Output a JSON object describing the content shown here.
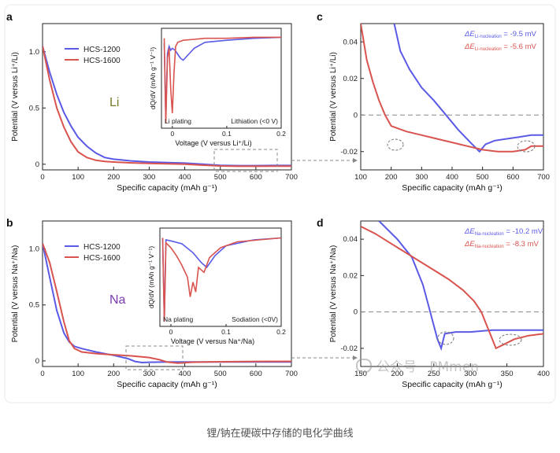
{
  "caption": "锂/钠在硬碳中存储的电化学曲线",
  "watermark": "公众号 · PMmen",
  "colors": {
    "blue": "#5a5ae6",
    "red": "#d9534f",
    "axis": "#222222",
    "dashed": "#888888",
    "bg": "#f3f3f3"
  },
  "chart_data": [
    {
      "panel": "a",
      "type": "line",
      "ylabel": "Potential (V versus Li⁺/Li)",
      "xlabel": "Specific capacity (mAh g⁻¹)",
      "xlim": [
        0,
        700
      ],
      "ylim": [
        -0.05,
        1.25
      ],
      "xticks": [
        "0",
        "100",
        "200",
        "300",
        "400",
        "500",
        "600",
        "700"
      ],
      "yticks": [
        "0",
        "0.5",
        "1.0"
      ],
      "element": "Li",
      "legend_placement": "top-left",
      "series": [
        {
          "name": "HCS-1200",
          "color": "blue",
          "x": [
            0,
            20,
            40,
            60,
            80,
            100,
            125,
            150,
            175,
            200,
            250,
            300,
            400,
            450,
            500,
            550,
            600,
            650,
            700
          ],
          "y": [
            1.05,
            0.82,
            0.62,
            0.46,
            0.34,
            0.24,
            0.16,
            0.1,
            0.06,
            0.045,
            0.03,
            0.02,
            0.01,
            0.0,
            -0.01,
            -0.012,
            -0.012,
            -0.011,
            -0.011
          ]
        },
        {
          "name": "HCS-1600",
          "color": "red",
          "x": [
            0,
            20,
            40,
            60,
            80,
            100,
            125,
            150,
            175,
            200,
            250,
            300,
            400,
            450,
            500,
            550,
            600,
            650,
            700
          ],
          "y": [
            1.05,
            0.75,
            0.5,
            0.33,
            0.2,
            0.11,
            0.06,
            0.035,
            0.025,
            0.02,
            0.012,
            0.008,
            0.0,
            -0.008,
            -0.015,
            -0.018,
            -0.018,
            -0.017,
            -0.017
          ]
        }
      ],
      "inset": {
        "ylabel": "dQ/dV (mAh g⁻¹ V⁻¹)",
        "xlabel": "Voltage (V versus Li⁺/Li)",
        "xlim": [
          -0.02,
          0.2
        ],
        "xticks": [
          "0",
          "0.1",
          "0.2"
        ],
        "left_note": "Li plating",
        "right_note": "Lithiation (<0 V)",
        "series": [
          {
            "name": "HCS-1200",
            "color": "blue",
            "x": [
              -0.015,
              -0.012,
              -0.009,
              -0.006,
              -0.003,
              0.0,
              0.005,
              0.01,
              0.015,
              0.02,
              0.03,
              0.04,
              0.06,
              0.1,
              0.15,
              0.2
            ],
            "y": [
              0.85,
              0.1,
              0.75,
              0.82,
              0.78,
              0.8,
              0.78,
              0.74,
              0.7,
              0.68,
              0.74,
              0.8,
              0.86,
              0.88,
              0.9,
              0.91
            ]
          },
          {
            "name": "HCS-1600",
            "color": "red",
            "x": [
              -0.015,
              -0.012,
              -0.009,
              -0.006,
              -0.003,
              0.0,
              0.003,
              0.006,
              0.01,
              0.02,
              0.04,
              0.06,
              0.1,
              0.15,
              0.2
            ],
            "y": [
              0.9,
              0.05,
              0.7,
              0.8,
              0.4,
              0.15,
              0.55,
              0.82,
              0.86,
              0.88,
              0.89,
              0.9,
              0.9,
              0.91,
              0.91
            ]
          }
        ]
      }
    },
    {
      "panel": "b",
      "type": "line",
      "ylabel": "Potential (V versus Na⁺/Na)",
      "xlabel": "Specific capacity (mAh g⁻¹)",
      "xlim": [
        0,
        700
      ],
      "ylim": [
        -0.05,
        1.25
      ],
      "xticks": [
        "0",
        "100",
        "200",
        "300",
        "400",
        "500",
        "600",
        "700"
      ],
      "yticks": [
        "0",
        "0.5",
        "1.0"
      ],
      "element": "Na",
      "legend_placement": "top-left",
      "series": [
        {
          "name": "HCS-1200",
          "color": "blue",
          "x": [
            0,
            20,
            40,
            60,
            75,
            90,
            110,
            150,
            200,
            240,
            260,
            280,
            300,
            350,
            400,
            500,
            600,
            700
          ],
          "y": [
            1.05,
            0.75,
            0.45,
            0.25,
            0.17,
            0.13,
            0.11,
            0.08,
            0.05,
            0.02,
            -0.005,
            -0.015,
            -0.012,
            -0.01,
            -0.01,
            -0.01,
            -0.01,
            -0.01
          ]
        },
        {
          "name": "HCS-1600",
          "color": "red",
          "x": [
            0,
            20,
            40,
            60,
            75,
            90,
            110,
            150,
            200,
            250,
            300,
            330,
            350,
            380,
            420,
            500,
            600,
            700
          ],
          "y": [
            1.05,
            0.88,
            0.62,
            0.35,
            0.18,
            0.11,
            0.08,
            0.065,
            0.055,
            0.045,
            0.03,
            0.01,
            -0.01,
            -0.02,
            -0.012,
            -0.008,
            -0.005,
            -0.004
          ]
        }
      ],
      "inset": {
        "ylabel": "dQ/dV (mAh g⁻¹ V⁻¹)",
        "xlabel": "Voltage (V versus Na⁺/Na)",
        "xlim": [
          -0.02,
          0.2
        ],
        "xticks": [
          "0",
          "0.1",
          "0.2"
        ],
        "left_note": "Na plating",
        "right_note": "Sodiation (<0V)",
        "series": [
          {
            "name": "HCS-1200",
            "color": "blue",
            "x": [
              -0.015,
              -0.012,
              -0.009,
              0.0,
              0.02,
              0.04,
              0.055,
              0.065,
              0.08,
              0.1,
              0.15,
              0.2
            ],
            "y": [
              0.9,
              0.05,
              0.88,
              0.87,
              0.84,
              0.75,
              0.65,
              0.6,
              0.72,
              0.82,
              0.88,
              0.9
            ]
          },
          {
            "name": "HCS-1600",
            "color": "red",
            "x": [
              -0.015,
              -0.012,
              -0.009,
              0.0,
              0.01,
              0.02,
              0.03,
              0.035,
              0.04,
              0.045,
              0.05,
              0.06,
              0.07,
              0.09,
              0.12,
              0.2
            ],
            "y": [
              0.9,
              0.05,
              0.85,
              0.8,
              0.72,
              0.62,
              0.5,
              0.3,
              0.45,
              0.35,
              0.6,
              0.55,
              0.7,
              0.8,
              0.86,
              0.9
            ]
          }
        ]
      }
    },
    {
      "panel": "c",
      "type": "line",
      "ylabel": "Potential (V versus Li⁺/Li)",
      "xlabel": "Specific capacity (mAh g⁻¹)",
      "xlim": [
        100,
        700
      ],
      "ylim": [
        -0.03,
        0.05
      ],
      "xticks": [
        "100",
        "200",
        "300",
        "400",
        "500",
        "600",
        "700"
      ],
      "yticks": [
        "0.04",
        "0.02",
        "0",
        "-0.02"
      ],
      "reference_line_y": 0,
      "annotations": [
        {
          "text": "ΔE",
          "sub": "Li-nucleation",
          "value": " = -9.5 mV",
          "color": "blue"
        },
        {
          "text": "ΔE",
          "sub": "Li-nucleation",
          "value": " = -5.6 mV",
          "color": "red"
        }
      ],
      "series": [
        {
          "name": "HCS-1200",
          "color": "blue",
          "x": [
            210,
            230,
            260,
            300,
            340,
            380,
            420,
            460,
            490,
            510,
            540,
            580,
            620,
            660,
            700
          ],
          "y": [
            0.05,
            0.035,
            0.025,
            0.015,
            0.008,
            0.0,
            -0.008,
            -0.015,
            -0.02,
            -0.016,
            -0.014,
            -0.013,
            -0.012,
            -0.011,
            -0.011
          ]
        },
        {
          "name": "HCS-1600",
          "color": "red",
          "x": [
            100,
            120,
            140,
            160,
            180,
            200,
            250,
            300,
            350,
            400,
            450,
            500,
            550,
            600,
            640,
            660,
            700
          ],
          "y": [
            0.05,
            0.03,
            0.018,
            0.008,
            0.0,
            -0.006,
            -0.009,
            -0.011,
            -0.013,
            -0.015,
            -0.017,
            -0.019,
            -0.02,
            -0.02,
            -0.019,
            -0.017,
            -0.017
          ]
        }
      ]
    },
    {
      "panel": "d",
      "type": "line",
      "ylabel": "Potential (V versus Na⁺/Na)",
      "xlabel": "Specific capacity (mAh g⁻¹)",
      "xlim": [
        150,
        400
      ],
      "ylim": [
        -0.03,
        0.05
      ],
      "xticks": [
        "150",
        "200",
        "250",
        "300",
        "350",
        "400"
      ],
      "yticks": [
        "0.04",
        "0.02",
        "0",
        "-0.02"
      ],
      "reference_line_y": 0,
      "annotations": [
        {
          "text": "ΔE",
          "sub": "Na-nucleation",
          "value": " = -10.2 mV",
          "color": "blue"
        },
        {
          "text": "ΔE",
          "sub": "Na-nucleation",
          "value": " = -8.3 mV",
          "color": "red"
        }
      ],
      "series": [
        {
          "name": "HCS-1200",
          "color": "blue",
          "x": [
            175,
            200,
            220,
            235,
            245,
            255,
            260,
            265,
            280,
            300,
            330,
            360,
            400
          ],
          "y": [
            0.05,
            0.04,
            0.03,
            0.015,
            0.0,
            -0.015,
            -0.02,
            -0.012,
            -0.011,
            -0.011,
            -0.01,
            -0.01,
            -0.01
          ]
        },
        {
          "name": "HCS-1600",
          "color": "red",
          "x": [
            150,
            170,
            190,
            210,
            230,
            250,
            270,
            290,
            305,
            315,
            325,
            335,
            345,
            360,
            380,
            400
          ],
          "y": [
            0.047,
            0.043,
            0.038,
            0.033,
            0.028,
            0.023,
            0.018,
            0.012,
            0.006,
            0.0,
            -0.01,
            -0.02,
            -0.018,
            -0.015,
            -0.013,
            -0.012
          ]
        }
      ]
    }
  ]
}
